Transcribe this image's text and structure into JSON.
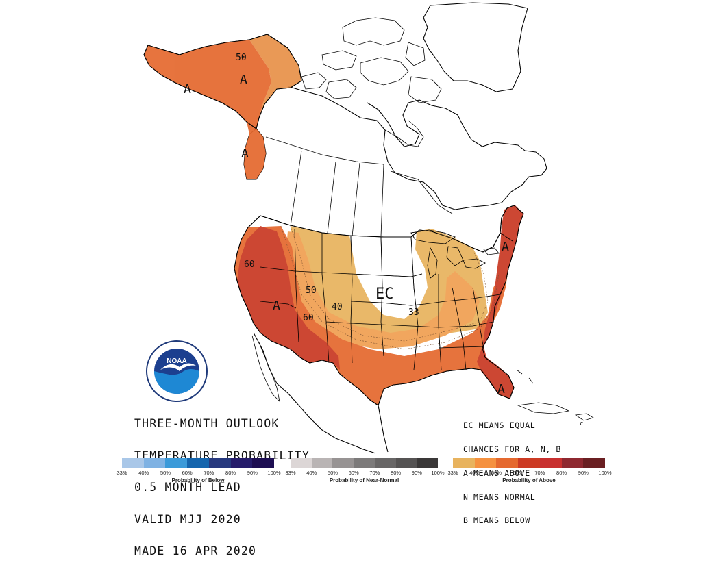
{
  "map": {
    "labels": {
      "ec": "EC",
      "above_symbol": "A",
      "contour_33": "33",
      "contour_40": "40",
      "contour_50": "50",
      "contour_60": "60"
    },
    "colors": {
      "above_33": "#e8b35e",
      "above_40": "#f1a052",
      "above_50": "#e5692f",
      "above_60": "#c93a24",
      "ocean": "#ffffff",
      "land": "#ffffff",
      "outline": "#000000"
    }
  },
  "outlook": {
    "line1": "THREE-MONTH OUTLOOK",
    "line2": "TEMPERATURE PROBABILITY",
    "line3": "0.5 MONTH LEAD",
    "line4": "VALID MJJ 2020",
    "line5": "MADE 16 APR 2020"
  },
  "legend_note": {
    "line1": "EC MEANS EQUAL",
    "line2": "CHANCES FOR A, N, B",
    "line3": "A MEANS ABOVE",
    "line4": "N MEANS NORMAL",
    "line5": "B MEANS BELOW",
    "trailing": "c"
  },
  "colorbars": [
    {
      "title": "Probability of Below",
      "ticks": [
        "33%",
        "40%",
        "50%",
        "60%",
        "70%",
        "80%",
        "90%",
        "100%"
      ],
      "colors": [
        "#a9c7e8",
        "#7fb2e3",
        "#3b9ad9",
        "#1565ad",
        "#27397e",
        "#261c6b",
        "#1d0e52"
      ]
    },
    {
      "title": "Probability of Near-Normal",
      "ticks": [
        "33%",
        "40%",
        "50%",
        "60%",
        "70%",
        "80%",
        "90%",
        "100%"
      ],
      "colors": [
        "#dcd6d6",
        "#b9b4b4",
        "#979393",
        "#7c7a7a",
        "#686666",
        "#555353",
        "#3a3838"
      ]
    },
    {
      "title": "Probability of Above",
      "ticks": [
        "33%",
        "40%",
        "50%",
        "60%",
        "70%",
        "80%",
        "90%",
        "100%"
      ],
      "colors": [
        "#e8b35e",
        "#f59140",
        "#e5692f",
        "#cc3b24",
        "#c8302f",
        "#8e2830",
        "#6a1f22"
      ]
    }
  ]
}
